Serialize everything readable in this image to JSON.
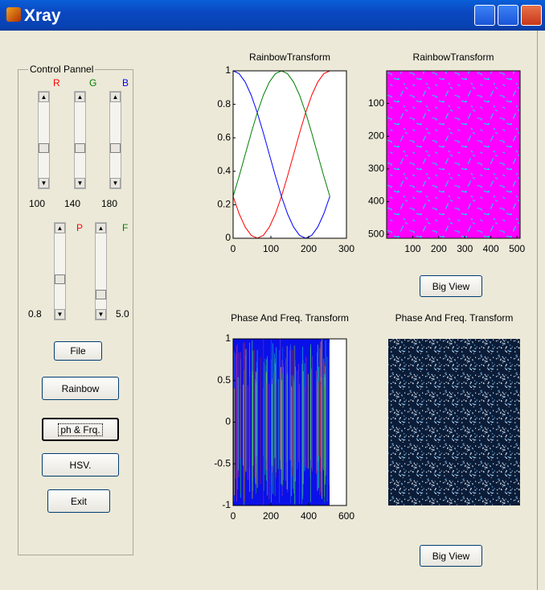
{
  "window": {
    "title": "Xray"
  },
  "control_panel": {
    "title": "Control Pannel",
    "sliders": [
      {
        "label": "R",
        "color": "#ff0000",
        "value": "100"
      },
      {
        "label": "G",
        "color": "#008000",
        "value": "140"
      },
      {
        "label": "B",
        "color": "#0000ff",
        "value": "180"
      },
      {
        "label": "P",
        "color": "#ff0000",
        "value": "0.8"
      },
      {
        "label": "F",
        "color": "#008000",
        "value": "5.0"
      }
    ]
  },
  "buttons": {
    "file": "File",
    "rainbow": "Rainbow",
    "phase_freq": "ph & Frq.",
    "hsv": "HSV.",
    "exit": "Exit",
    "big_view_top": "Big View",
    "big_view_bottom": "Big View"
  },
  "chart_data": [
    {
      "type": "line",
      "title": "RainbowTransform",
      "x": [
        0,
        16,
        32,
        48,
        64,
        80,
        96,
        112,
        128,
        144,
        160,
        176,
        192,
        208,
        224,
        240,
        256
      ],
      "series": [
        {
          "color": "#ff0000",
          "values": [
            0.25,
            0.146,
            0.067,
            0.017,
            0,
            0.017,
            0.067,
            0.146,
            0.25,
            0.371,
            0.5,
            0.629,
            0.75,
            0.854,
            0.933,
            0.983,
            1
          ]
        },
        {
          "color": "#008000",
          "values": [
            0.25,
            0.371,
            0.5,
            0.629,
            0.75,
            0.854,
            0.933,
            0.983,
            1,
            0.983,
            0.933,
            0.854,
            0.75,
            0.629,
            0.5,
            0.371,
            0.25
          ]
        },
        {
          "color": "#0000ff",
          "values": [
            1,
            0.983,
            0.933,
            0.854,
            0.75,
            0.629,
            0.5,
            0.371,
            0.25,
            0.146,
            0.067,
            0.017,
            0,
            0.017,
            0.067,
            0.146,
            0.25
          ]
        }
      ],
      "xlim": [
        0,
        300
      ],
      "ylim": [
        0,
        1
      ],
      "xticks": [
        0,
        100,
        200,
        300
      ],
      "yticks": [
        0,
        0.2,
        0.4,
        0.6,
        0.8,
        1
      ]
    },
    {
      "type": "image",
      "title": "RainbowTransform",
      "colors": [
        "#ff00ff",
        "#00e8ff"
      ],
      "xlim": [
        0,
        512
      ],
      "ylim": [
        0,
        512
      ],
      "xticks": [
        100,
        200,
        300,
        400,
        500
      ],
      "yticks": [
        100,
        200,
        300,
        400,
        500
      ]
    },
    {
      "type": "stripes",
      "title": "Phase And Freq. Transform",
      "xlim": [
        0,
        600
      ],
      "ylim": [
        -1,
        1
      ],
      "xticks": [
        0,
        200,
        400,
        600
      ],
      "yticks": [
        -1,
        -0.5,
        0,
        0.5,
        1
      ]
    },
    {
      "type": "image",
      "title": "Phase And Freq. Transform",
      "colors": [
        "#0b1c38",
        "#e8f4ff"
      ]
    }
  ]
}
